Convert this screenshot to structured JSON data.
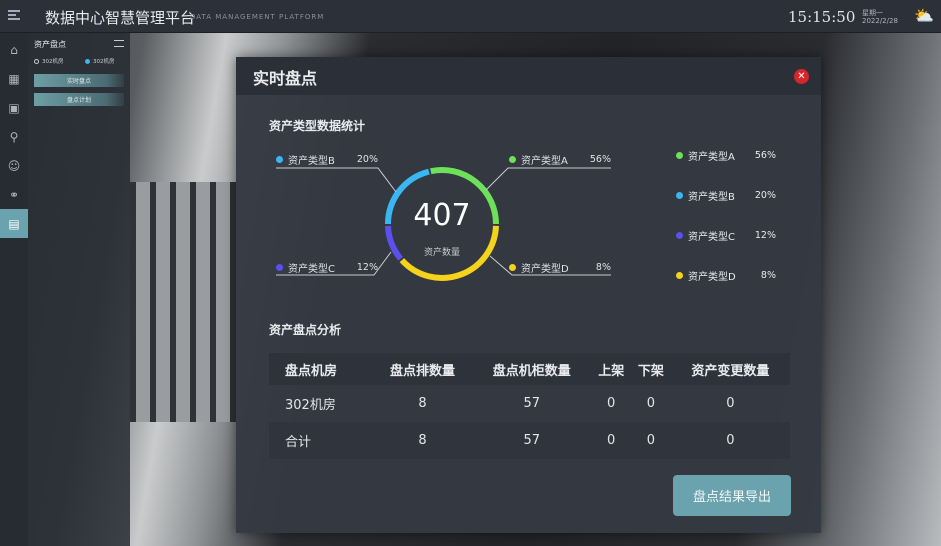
{
  "header": {
    "title": "数据中心智慧管理平台",
    "subtitle": "DATA MANAGEMENT PLATFORM",
    "time": "15:15:50",
    "weekday": "星期一",
    "date": "2022/2/28",
    "weather_icon": "partly-cloudy-icon"
  },
  "nav": {
    "icons": [
      "home-icon",
      "grid-icon",
      "monitor-icon",
      "tool-icon",
      "face-icon",
      "link-icon",
      "asset-icon"
    ],
    "active": 6
  },
  "panel": {
    "title": "资产盘点",
    "rooms": [
      {
        "label": "302机房",
        "selected": false
      },
      {
        "label": "302机房",
        "selected": true
      }
    ],
    "buttons": [
      "实时盘点",
      "盘点计划"
    ]
  },
  "modal": {
    "title": "实时盘点",
    "stats_title": "资产类型数据统计",
    "total": "407",
    "total_label": "资产数量",
    "types": [
      {
        "name": "资产类型A",
        "percent": "56%",
        "color": "#6ee05a"
      },
      {
        "name": "资产类型B",
        "percent": "20%",
        "color": "#3ab7f2"
      },
      {
        "name": "资产类型C",
        "percent": "12%",
        "color": "#5b4ff0"
      },
      {
        "name": "资产类型D",
        "percent": "8%",
        "color": "#f5d31c"
      }
    ],
    "analysis_title": "资产盘点分析",
    "table": {
      "headers": [
        "盘点机房",
        "盘点排数量",
        "盘点机柜数量",
        "上架",
        "下架",
        "资产变更数量"
      ],
      "rows": [
        [
          "302机房",
          "8",
          "57",
          "0",
          "0",
          "0"
        ],
        [
          "合计",
          "8",
          "57",
          "0",
          "0",
          "0"
        ]
      ]
    },
    "export_label": "盘点结果导出"
  }
}
